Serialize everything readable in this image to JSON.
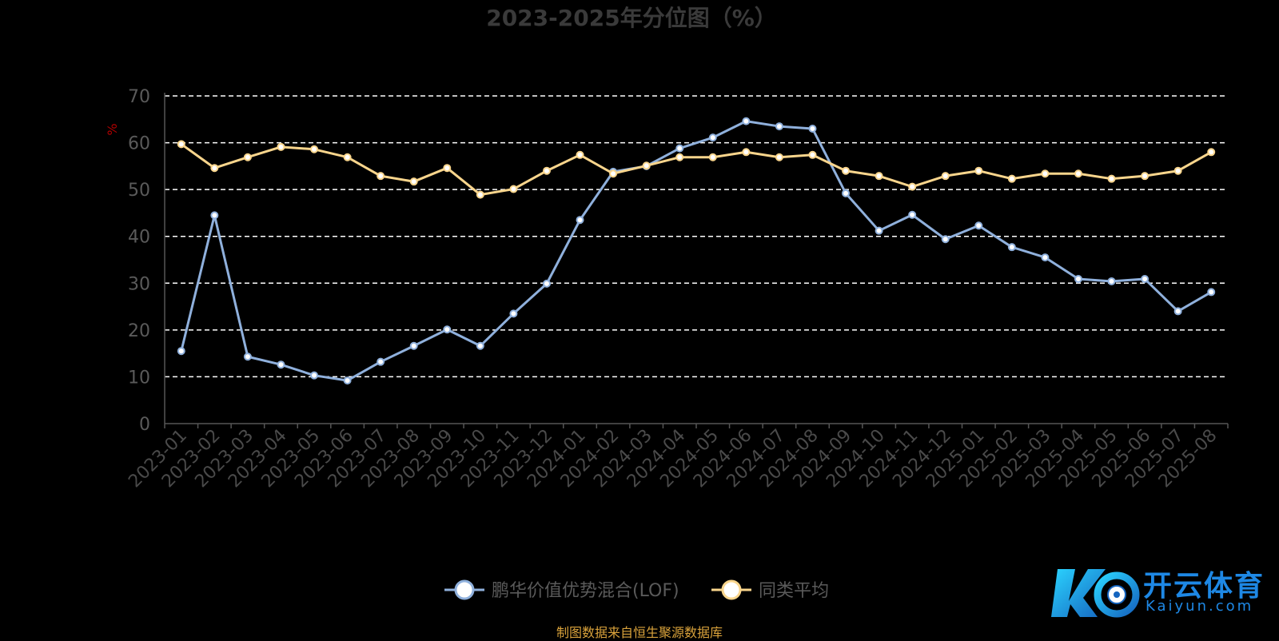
{
  "chart_data": {
    "type": "line",
    "title": "2023-2025年分位图（%）",
    "ylabel": "%",
    "ylim": [
      0,
      70
    ],
    "yticks": [
      0,
      10,
      20,
      30,
      40,
      50,
      60,
      70
    ],
    "grid": true,
    "legend_position": "bottom",
    "categories": [
      "2023-01",
      "2023-02",
      "2023-03",
      "2023-04",
      "2023-05",
      "2023-06",
      "2023-07",
      "2023-08",
      "2023-09",
      "2023-10",
      "2023-11",
      "2023-12",
      "2024-01",
      "2024-02",
      "2024-03",
      "2024-04",
      "2024-05",
      "2024-06",
      "2024-07",
      "2024-08",
      "2024-09",
      "2024-10",
      "2024-11",
      "2024-12",
      "2025-01",
      "2025-02",
      "2025-03",
      "2025-04",
      "2025-05",
      "2025-06",
      "2025-07",
      "2025-08"
    ],
    "series": [
      {
        "name": "鹏华价值优势混合(LOF)",
        "color": "#8fb0dc",
        "values": [
          15.5,
          44.5,
          14.3,
          12.6,
          10.3,
          9.2,
          13.2,
          16.6,
          20.1,
          16.6,
          23.5,
          29.9,
          43.5,
          53.8,
          55.0,
          58.8,
          61.1,
          64.6,
          63.5,
          63.0,
          49.2,
          41.2,
          44.6,
          39.4,
          42.3,
          37.7,
          35.5,
          30.9,
          30.4,
          30.9,
          24.0,
          28.1
        ]
      },
      {
        "name": "同类平均",
        "color": "#f9d58c",
        "values": [
          59.7,
          54.6,
          56.9,
          59.1,
          58.6,
          56.9,
          52.9,
          51.7,
          54.6,
          48.9,
          50.1,
          54.0,
          57.4,
          53.4,
          55.1,
          56.9,
          56.9,
          58.0,
          56.9,
          57.4,
          54.0,
          52.9,
          50.6,
          52.9,
          54.0,
          52.3,
          53.4,
          53.4,
          52.3,
          52.9,
          54.0,
          58.0
        ]
      }
    ]
  },
  "source_note": "制图数据来自恒生聚源数据库",
  "watermark": {
    "brand": "开云体育",
    "url": "Kaiyun.com",
    "color": "#1e88e5"
  }
}
